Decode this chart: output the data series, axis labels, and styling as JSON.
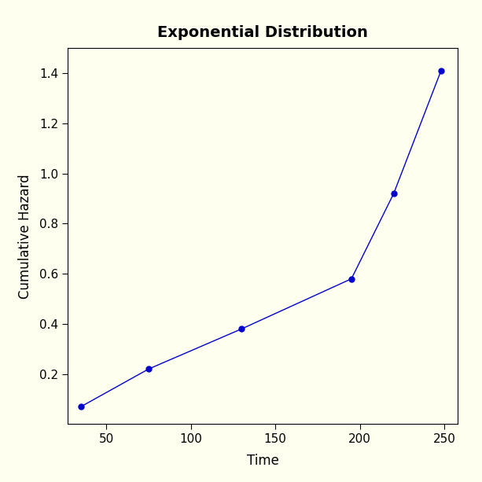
{
  "x": [
    35,
    75,
    130,
    195,
    220,
    248
  ],
  "y": [
    0.07,
    0.22,
    0.38,
    0.58,
    0.92,
    1.41
  ],
  "title": "Exponential Distribution",
  "xlabel": "Time",
  "ylabel": "Cumulative Hazard",
  "xlim": [
    27,
    258
  ],
  "ylim": [
    0.0,
    1.5
  ],
  "xticks": [
    50,
    100,
    150,
    200,
    250
  ],
  "yticks": [
    0.2,
    0.4,
    0.6,
    0.8,
    1.0,
    1.2,
    1.4
  ],
  "line_color": "#0000CD",
  "marker_color": "#0000CD",
  "bg_color": "#FFFFF0",
  "plot_bg_color": "#FFFFF0",
  "title_fontsize": 14,
  "label_fontsize": 12,
  "tick_fontsize": 11,
  "line_width": 1.0,
  "marker_size": 5
}
